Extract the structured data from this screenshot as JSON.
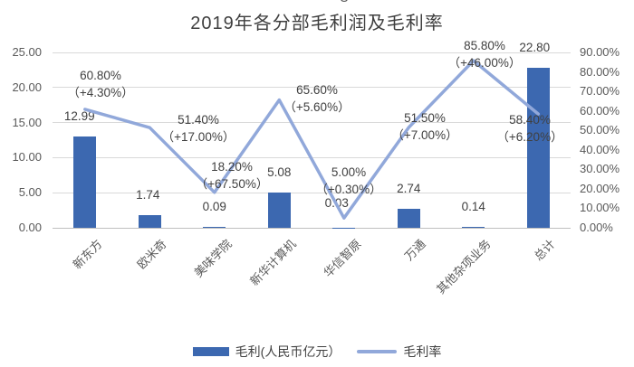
{
  "figure_marker": "8",
  "title": "2019年各分部毛利润及毛利率",
  "chart_data": {
    "type": "combo",
    "title": "2019年各分部毛利润及毛利率",
    "categories": [
      "新东方",
      "欧米奇",
      "美味学院",
      "新华计算机",
      "华信智原",
      "万通",
      "其他杂项业务",
      "总计"
    ],
    "series": [
      {
        "name": "毛利(人民币亿元）",
        "type": "bar",
        "axis": "left",
        "color": "#3c68b0",
        "values": [
          12.99,
          1.74,
          0.09,
          5.08,
          0.03,
          2.74,
          0.14,
          22.8
        ],
        "labels": [
          "12.99",
          "1.74",
          "0.09",
          "5.08",
          "0.03",
          "2.74",
          "0.14",
          "22.80"
        ]
      },
      {
        "name": "毛利率",
        "type": "line",
        "axis": "right",
        "color": "#91a8da",
        "values_percent": [
          60.8,
          51.4,
          18.2,
          65.6,
          5.0,
          51.5,
          85.8,
          58.4
        ],
        "labels": [
          "60.80%",
          "51.40%",
          "18.20%",
          "65.60%",
          "5.00%",
          "51.50%",
          "85.80%",
          "58.40%"
        ],
        "yoy_sublabels": [
          "（+4.30%）",
          "（+17.00%）",
          "（+67.50%）",
          "（+5.60%）",
          "（+0.30%）",
          "（+7.00%）",
          "（+46.00%）",
          "（+6.20%）"
        ]
      }
    ],
    "left_axis": {
      "min": 0,
      "max": 25,
      "ticks": [
        "25.00",
        "20.00",
        "15.00",
        "10.00",
        "5.00",
        "0.00"
      ]
    },
    "right_axis": {
      "min": 0,
      "max": 90,
      "ticks": [
        "90.00%",
        "80.00%",
        "70.00%",
        "60.00%",
        "50.00%",
        "40.00%",
        "30.00%",
        "20.00%",
        "10.00%",
        "0.00%"
      ]
    },
    "grid": true,
    "legend_position": "bottom",
    "legend": [
      {
        "label": "毛利(人民币亿元）",
        "type": "bar"
      },
      {
        "label": "毛利率",
        "type": "line"
      }
    ]
  }
}
